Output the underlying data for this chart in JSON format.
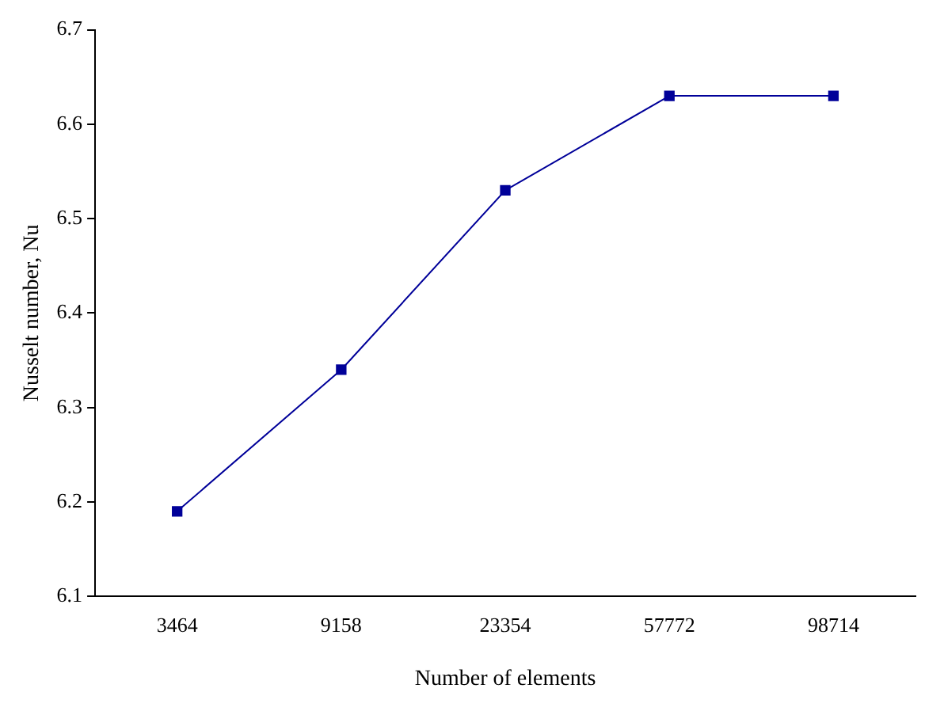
{
  "chart_data": {
    "type": "line",
    "xlabel": "Number of elements",
    "ylabel": "Nusselt number, Nu",
    "categories": [
      "3464",
      "9158",
      "23354",
      "57772",
      "98714"
    ],
    "series": [
      {
        "color": "#000099",
        "values": [
          6.19,
          6.34,
          6.53,
          6.63,
          6.63
        ]
      }
    ],
    "ylim": [
      6.1,
      6.7
    ],
    "yticks": [
      6.1,
      6.2,
      6.3,
      6.4,
      6.5,
      6.6,
      6.7
    ],
    "marker": "square",
    "line_style": "solid",
    "legend": false
  }
}
